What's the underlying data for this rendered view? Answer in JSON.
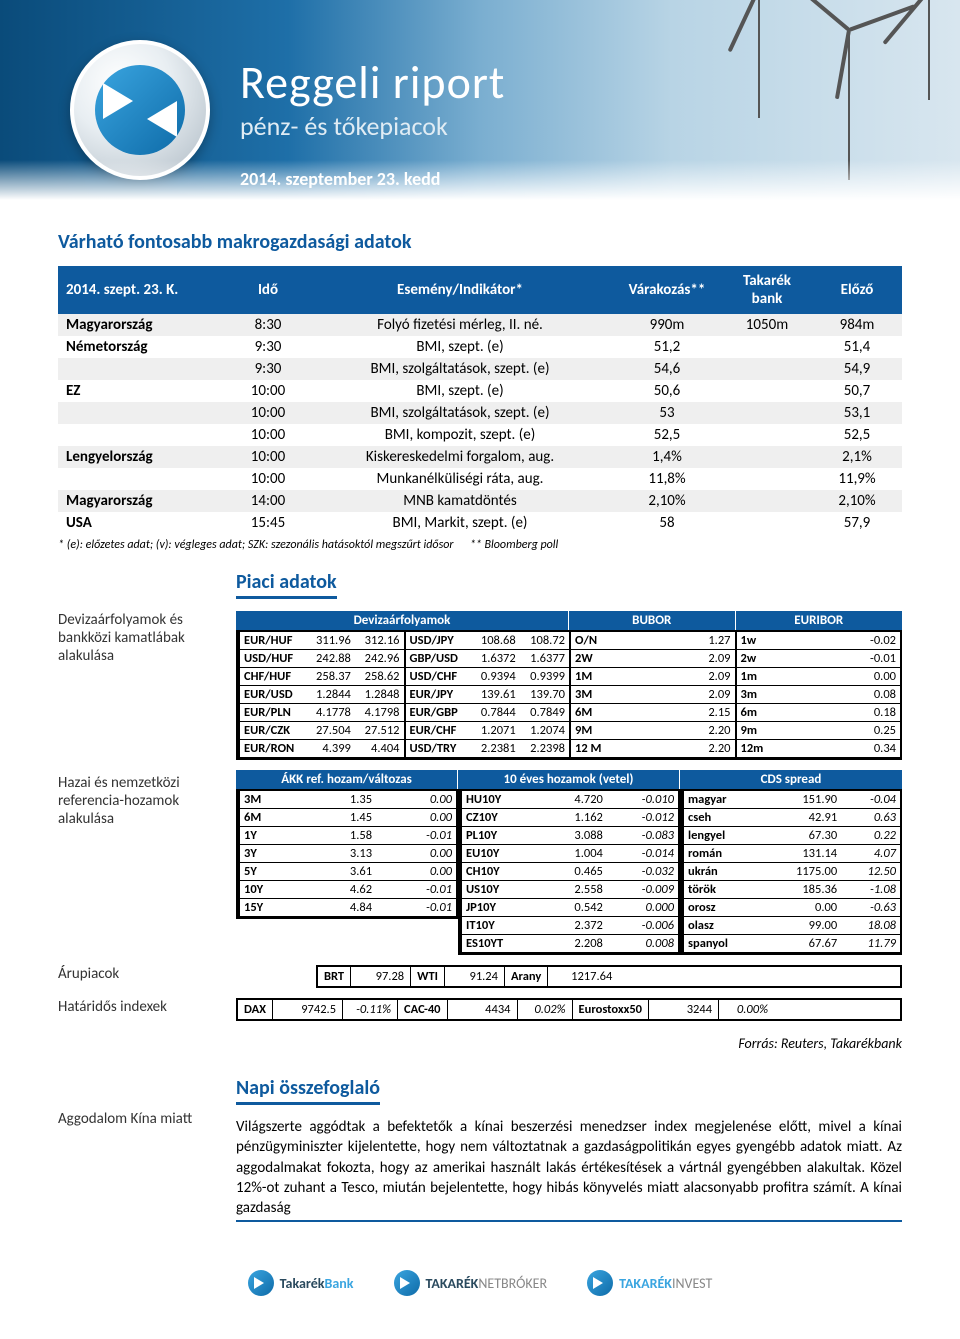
{
  "colors": {
    "primary": "#0e5a9e",
    "headerGradientFrom": "#0a4b7a",
    "headerGradientTo": "#d8e6ef",
    "rowAlt": "#efefef",
    "text": "#000000",
    "white": "#ffffff"
  },
  "banner": {
    "title": "Reggeli riport",
    "subtitle": "pénz- és tőkepiacok",
    "date": "2014. szeptember 23. kedd"
  },
  "macro": {
    "title": "Várható fontosabb makrogazdasági adatok",
    "headers": {
      "date": "2014. szept. 23. K.",
      "time": "Idő",
      "event": "Esemény/Indikátor*",
      "expect": "Várakozás**",
      "bank": "Takarék bank",
      "prev": "Előző"
    },
    "rows": [
      {
        "country": "Magyarország",
        "time": "8:30",
        "event": "Folyó fizetési mérleg, II. né.",
        "expect": "990m",
        "bank": "1050m",
        "prev": "984m"
      },
      {
        "country": "Németország",
        "time": "9:30",
        "event": "BMI, szept. (e)",
        "expect": "51,2",
        "bank": "",
        "prev": "51,4"
      },
      {
        "country": "",
        "time": "9:30",
        "event": "BMI, szolgáltatások, szept. (e)",
        "expect": "54,6",
        "bank": "",
        "prev": "54,9"
      },
      {
        "country": "EZ",
        "time": "10:00",
        "event": "BMI, szept. (e)",
        "expect": "50,6",
        "bank": "",
        "prev": "50,7"
      },
      {
        "country": "",
        "time": "10:00",
        "event": "BMI, szolgáltatások, szept. (e)",
        "expect": "53",
        "bank": "",
        "prev": "53,1"
      },
      {
        "country": "",
        "time": "10:00",
        "event": "BMI, kompozit, szept. (e)",
        "expect": "52,5",
        "bank": "",
        "prev": "52,5"
      },
      {
        "country": "Lengyelország",
        "time": "10:00",
        "event": "Kiskereskedelmi forgalom, aug.",
        "expect": "1,4%",
        "bank": "",
        "prev": "2,1%"
      },
      {
        "country": "",
        "time": "10:00",
        "event": "Munkanélküliségi ráta, aug.",
        "expect": "11,8%",
        "bank": "",
        "prev": "11,9%"
      },
      {
        "country": "Magyarország",
        "time": "14:00",
        "event": "MNB kamatdöntés",
        "expect": "2,10%",
        "bank": "",
        "prev": "2,10%"
      },
      {
        "country": "USA",
        "time": "15:45",
        "event": "BMI, Markit, szept. (e)",
        "expect": "58",
        "bank": "",
        "prev": "57,9"
      }
    ],
    "footnote_left": "* (e): előzetes adat; (v): végleges adat; SZK: szezonális hatásoktól megszűrt idősor",
    "footnote_right": "** Bloomberg poll"
  },
  "market": {
    "title": "Piaci adatok",
    "fx": {
      "side": "Devizaárfolyamok és bankközi kamatlábak alakulása",
      "headers": {
        "fx": "Devizaárfolyamok",
        "bubor": "BUBOR",
        "euribor": "EURIBOR"
      },
      "left": [
        {
          "pair": "EUR/HUF",
          "v1": "311.96",
          "v2": "312.16"
        },
        {
          "pair": "USD/HUF",
          "v1": "242.88",
          "v2": "242.96"
        },
        {
          "pair": "CHF/HUF",
          "v1": "258.37",
          "v2": "258.62"
        },
        {
          "pair": "EUR/USD",
          "v1": "1.2844",
          "v2": "1.2848"
        },
        {
          "pair": "EUR/PLN",
          "v1": "4.1778",
          "v2": "4.1798"
        },
        {
          "pair": "EUR/CZK",
          "v1": "27.504",
          "v2": "27.512"
        },
        {
          "pair": "EUR/RON",
          "v1": "4.399",
          "v2": "4.404"
        }
      ],
      "mid": [
        {
          "pair": "USD/JPY",
          "v1": "108.68",
          "v2": "108.72"
        },
        {
          "pair": "GBP/USD",
          "v1": "1.6372",
          "v2": "1.6377"
        },
        {
          "pair": "USD/CHF",
          "v1": "0.9394",
          "v2": "0.9399"
        },
        {
          "pair": "EUR/JPY",
          "v1": "139.61",
          "v2": "139.70"
        },
        {
          "pair": "EUR/GBP",
          "v1": "0.7844",
          "v2": "0.7849"
        },
        {
          "pair": "EUR/CHF",
          "v1": "1.2071",
          "v2": "1.2074"
        },
        {
          "pair": "USD/TRY",
          "v1": "2.2381",
          "v2": "2.2398"
        }
      ],
      "bubor": [
        {
          "t": "O/N",
          "v": "1.27"
        },
        {
          "t": "2W",
          "v": "2.09"
        },
        {
          "t": "1M",
          "v": "2.09"
        },
        {
          "t": "3M",
          "v": "2.09"
        },
        {
          "t": "6M",
          "v": "2.15"
        },
        {
          "t": "9M",
          "v": "2.20"
        },
        {
          "t": "12 M",
          "v": "2.20"
        }
      ],
      "euribor": [
        {
          "t": "1w",
          "v": "-0.02"
        },
        {
          "t": "2w",
          "v": "-0.01"
        },
        {
          "t": "1m",
          "v": "0.00"
        },
        {
          "t": "3m",
          "v": "0.08"
        },
        {
          "t": "6m",
          "v": "0.18"
        },
        {
          "t": "9m",
          "v": "0.25"
        },
        {
          "t": "12m",
          "v": "0.34"
        }
      ]
    },
    "yields": {
      "side": "Hazai és nemzetközi referencia-hozamok alakulása",
      "headers": {
        "akk": "ÁKK ref. hozam/változas",
        "ten": "10 éves hozamok (vetel)",
        "cds": "CDS spread"
      },
      "akk": [
        {
          "t": "3M",
          "v": "1.35",
          "d": "0.00"
        },
        {
          "t": "6M",
          "v": "1.45",
          "d": "0.00"
        },
        {
          "t": "1Y",
          "v": "1.58",
          "d": "-0.01"
        },
        {
          "t": "3Y",
          "v": "3.13",
          "d": "0.00"
        },
        {
          "t": "5Y",
          "v": "3.61",
          "d": "0.00"
        },
        {
          "t": "10Y",
          "v": "4.62",
          "d": "-0.01"
        },
        {
          "t": "15Y",
          "v": "4.84",
          "d": "-0.01"
        }
      ],
      "ten": [
        {
          "t": "HU10Y",
          "v": "4.720",
          "d": "-0.010"
        },
        {
          "t": "CZ10Y",
          "v": "1.162",
          "d": "-0.012"
        },
        {
          "t": "PL10Y",
          "v": "3.088",
          "d": "-0.083"
        },
        {
          "t": "EU10Y",
          "v": "1.004",
          "d": "-0.014"
        },
        {
          "t": "CH10Y",
          "v": "0.465",
          "d": "-0.032"
        },
        {
          "t": "US10Y",
          "v": "2.558",
          "d": "-0.009"
        },
        {
          "t": "JP10Y",
          "v": "0.542",
          "d": "0.000"
        },
        {
          "t": "IT10Y",
          "v": "2.372",
          "d": "-0.006"
        },
        {
          "t": "ES10YT",
          "v": "2.208",
          "d": "0.008"
        }
      ],
      "cds": [
        {
          "t": "magyar",
          "v": "151.90",
          "d": "-0.04"
        },
        {
          "t": "cseh",
          "v": "42.91",
          "d": "0.63"
        },
        {
          "t": "lengyel",
          "v": "67.30",
          "d": "0.22"
        },
        {
          "t": "román",
          "v": "131.14",
          "d": "4.07"
        },
        {
          "t": "ukrán",
          "v": "1175.00",
          "d": "12.50"
        },
        {
          "t": "török",
          "v": "185.36",
          "d": "-1.08"
        },
        {
          "t": "orosz",
          "v": "0.00",
          "d": "-0.63"
        },
        {
          "t": "olasz",
          "v": "99.00",
          "d": "18.08"
        },
        {
          "t": "spanyol",
          "v": "67.67",
          "d": "11.79"
        }
      ]
    },
    "commod": {
      "side": "Árupiacok",
      "items": [
        {
          "k": "BRT",
          "v": "97.28"
        },
        {
          "k": "WTI",
          "v": "91.24"
        },
        {
          "k": "Arany",
          "v": "1217.64"
        }
      ]
    },
    "futures": {
      "side": "Határidős indexek",
      "items": [
        {
          "k": "DAX",
          "v": "9742.5",
          "d": "-0.11%"
        },
        {
          "k": "CAC-40",
          "v": "4434",
          "d": "0.02%"
        },
        {
          "k": "Eurostoxx50",
          "v": "3244",
          "d": "0.00%"
        }
      ]
    },
    "source": "Forrás: Reuters, Takarékbank"
  },
  "summary": {
    "title": "Napi összefoglaló",
    "side": "Aggodalom Kína miatt",
    "text": "Világszerte aggódtak a befektetők a kínai beszerzési menedzser index megjelenése előtt, mivel a kínai pénzügyminiszter kijelentette, hogy nem változtatnak a gazdaságpolitikán egyes gyengébb adatok miatt. Az aggodalmakat fokozta, hogy az amerikai használt lakás értékesítések a vártnál gyengébben alakultak. Közel 12%-ot zuhant a Tesco, miután bejelentette, hogy hibás könyvelés miatt alacsonyabb profitra számít. A kínai gazdaság"
  },
  "footer": {
    "b1": {
      "a": "Takarék",
      "b": "Bank"
    },
    "b2": {
      "a": "TAKARÉK",
      "b": "NETBRÓKER"
    },
    "b3": {
      "a": "TAKARÉK",
      "b": "INVEST"
    }
  }
}
